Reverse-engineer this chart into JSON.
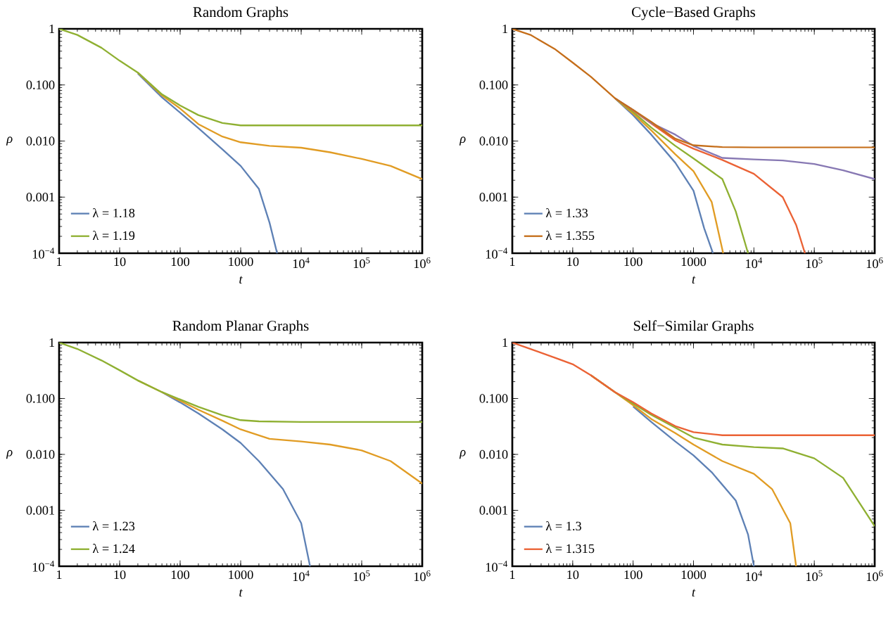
{
  "chart_data": [
    {
      "type": "line",
      "title": "Random Graphs",
      "xlabel": "t",
      "ylabel": "ρ",
      "log": "xy",
      "legend": "bottom left",
      "xlim": [
        1,
        1000000
      ],
      "ylim": [
        0.0001,
        1
      ],
      "xticks": [
        1,
        10,
        100,
        1000,
        {
          "value": 10000,
          "label": "10$^{4}$"
        },
        {
          "value": 100000,
          "label": "10$^{5}$"
        },
        {
          "value": 1000000,
          "label": "10$^{6}$"
        }
      ],
      "yticks": [
        {
          "value": 0.0001,
          "label": "10$^{−4}$"
        },
        {
          "value": 0.001,
          "label": "0.001"
        },
        {
          "value": 0.01,
          "label": "0.010"
        },
        {
          "value": 0.1,
          "label": "0.100"
        },
        1
      ],
      "series": [
        {
          "name": "λ = 1.18",
          "color": "#5e81b5",
          "x": [
            20,
            50,
            100,
            200,
            500,
            1000,
            2000,
            3000,
            4000
          ],
          "values": [
            0.16,
            0.06,
            0.032,
            0.017,
            0.0071,
            0.0036,
            0.0014,
            0.00035,
            0.0001
          ]
        },
        {
          "color": "#e19c24",
          "x": [
            20,
            50,
            100,
            200,
            500,
            1000,
            3000,
            10000,
            30000,
            100000,
            300000,
            1000000
          ],
          "values": [
            0.165,
            0.065,
            0.038,
            0.02,
            0.012,
            0.0095,
            0.0082,
            0.0076,
            0.0063,
            0.0048,
            0.0036,
            0.0021
          ]
        },
        {
          "name": "λ = 1.19",
          "color": "#8fb032",
          "x": [
            1,
            2,
            5,
            10,
            20,
            50,
            100,
            200,
            500,
            1000,
            10000,
            100000,
            1000000
          ],
          "values": [
            1,
            0.78,
            0.46,
            0.27,
            0.166,
            0.068,
            0.043,
            0.029,
            0.021,
            0.019,
            0.019,
            0.019,
            0.019
          ]
        }
      ]
    },
    {
      "type": "line",
      "title": "Cycle−Based Graphs",
      "xlabel": "t",
      "ylabel": "ρ",
      "log": "xy",
      "legend": "bottom left",
      "xlim": [
        1,
        1000000
      ],
      "ylim": [
        0.0001,
        1
      ],
      "xticks": [
        1,
        10,
        100,
        1000,
        {
          "value": 10000,
          "label": "10$^{4}$"
        },
        {
          "value": 100000,
          "label": "10$^{5}$"
        },
        {
          "value": 1000000,
          "label": "10$^{6}$"
        }
      ],
      "yticks": [
        {
          "value": 0.0001,
          "label": "10$^{−4}$"
        },
        {
          "value": 0.001,
          "label": "0.001"
        },
        {
          "value": 0.01,
          "label": "0.010"
        },
        {
          "value": 0.1,
          "label": "0.100"
        },
        1
      ],
      "series": [
        {
          "name": "λ = 1.33",
          "color": "#5e81b5",
          "x": [
            50,
            100,
            200,
            500,
            1000,
            1500,
            2100
          ],
          "values": [
            0.058,
            0.029,
            0.013,
            0.0041,
            0.0013,
            0.00028,
            0.0001
          ]
        },
        {
          "color": "#e19c24",
          "x": [
            50,
            100,
            200,
            500,
            1000,
            2000,
            3100
          ],
          "values": [
            0.058,
            0.031,
            0.0155,
            0.0058,
            0.0029,
            0.00082,
            0.0001
          ]
        },
        {
          "color": "#8fb032",
          "x": [
            50,
            100,
            200,
            500,
            1000,
            3000,
            5000,
            8000
          ],
          "values": [
            0.058,
            0.033,
            0.0174,
            0.0082,
            0.0049,
            0.0021,
            0.00056,
            0.0001
          ]
        },
        {
          "color": "#eb6235",
          "x": [
            50,
            100,
            200,
            500,
            1000,
            3000,
            10000,
            30000,
            50000,
            70000
          ],
          "values": [
            0.058,
            0.035,
            0.0206,
            0.0103,
            0.0073,
            0.0046,
            0.0026,
            0.001,
            0.00032,
            0.0001
          ]
        },
        {
          "color": "#8778b3",
          "x": [
            50,
            100,
            200,
            500,
            1000,
            3000,
            10000,
            30000,
            100000,
            300000,
            1000000
          ],
          "values": [
            0.058,
            0.036,
            0.021,
            0.013,
            0.0082,
            0.005,
            0.0047,
            0.0045,
            0.0039,
            0.003,
            0.0021
          ]
        },
        {
          "name": "λ = 1.355",
          "color": "#c56e1a",
          "x": [
            1,
            2,
            5,
            10,
            20,
            50,
            100,
            200,
            500,
            1000,
            3000,
            10000,
            100000,
            1000000
          ],
          "values": [
            1,
            0.78,
            0.44,
            0.25,
            0.14,
            0.058,
            0.036,
            0.022,
            0.011,
            0.0084,
            0.0078,
            0.0077,
            0.0077,
            0.0077
          ]
        }
      ]
    },
    {
      "type": "line",
      "title": "Random Planar Graphs",
      "xlabel": "t",
      "ylabel": "ρ",
      "log": "xy",
      "legend": "bottom left",
      "xlim": [
        1,
        1000000
      ],
      "ylim": [
        0.0001,
        1
      ],
      "xticks": [
        1,
        10,
        100,
        1000,
        {
          "value": 10000,
          "label": "10$^{4}$"
        },
        {
          "value": 100000,
          "label": "10$^{5}$"
        },
        {
          "value": 1000000,
          "label": "10$^{6}$"
        }
      ],
      "yticks": [
        {
          "value": 0.0001,
          "label": "10$^{−4}$"
        },
        {
          "value": 0.001,
          "label": "0.001"
        },
        {
          "value": 0.01,
          "label": "0.010"
        },
        {
          "value": 0.1,
          "label": "0.100"
        },
        1
      ],
      "series": [
        {
          "name": "λ = 1.23",
          "color": "#5e81b5",
          "x": [
            50,
            100,
            200,
            500,
            1000,
            2000,
            5000,
            10000,
            14000
          ],
          "values": [
            0.13,
            0.085,
            0.054,
            0.028,
            0.016,
            0.0076,
            0.0024,
            0.00059,
            0.0001
          ]
        },
        {
          "color": "#e19c24",
          "x": [
            20,
            50,
            100,
            200,
            500,
            1000,
            3000,
            10000,
            30000,
            100000,
            300000,
            1000000
          ],
          "values": [
            0.21,
            0.13,
            0.091,
            0.063,
            0.04,
            0.028,
            0.019,
            0.017,
            0.015,
            0.0118,
            0.0076,
            0.003
          ]
        },
        {
          "name": "λ = 1.24",
          "color": "#8fb032",
          "x": [
            1,
            2,
            5,
            10,
            20,
            50,
            100,
            200,
            500,
            1000,
            2000,
            10000,
            100000,
            1000000
          ],
          "values": [
            1,
            0.77,
            0.48,
            0.32,
            0.21,
            0.13,
            0.096,
            0.071,
            0.05,
            0.041,
            0.039,
            0.038,
            0.038,
            0.038
          ]
        }
      ]
    },
    {
      "type": "line",
      "title": "Self−Similar Graphs",
      "xlabel": "t",
      "ylabel": "ρ",
      "log": "xy",
      "legend": "bottom left",
      "xlim": [
        1,
        1000000
      ],
      "ylim": [
        0.0001,
        1
      ],
      "xticks": [
        1,
        10,
        100,
        1000,
        {
          "value": 10000,
          "label": "10$^{4}$"
        },
        {
          "value": 100000,
          "label": "10$^{5}$"
        },
        {
          "value": 1000000,
          "label": "10$^{6}$"
        }
      ],
      "yticks": [
        {
          "value": 0.0001,
          "label": "10$^{−4}$"
        },
        {
          "value": 0.001,
          "label": "0.001"
        },
        {
          "value": 0.01,
          "label": "0.010"
        },
        {
          "value": 0.1,
          "label": "0.100"
        },
        1
      ],
      "series": [
        {
          "name": "λ = 1.3",
          "color": "#5e81b5",
          "x": [
            100,
            200,
            500,
            1000,
            2000,
            5000,
            8000,
            10000
          ],
          "values": [
            0.072,
            0.038,
            0.017,
            0.0096,
            0.0048,
            0.0015,
            0.00037,
            0.0001
          ]
        },
        {
          "color": "#e19c24",
          "x": [
            20,
            50,
            100,
            200,
            500,
            1000,
            3000,
            10000,
            20000,
            40000,
            50000
          ],
          "values": [
            0.26,
            0.13,
            0.076,
            0.043,
            0.024,
            0.015,
            0.0076,
            0.0045,
            0.0024,
            0.00059,
            0.0001
          ]
        },
        {
          "color": "#8fb032",
          "x": [
            20,
            50,
            100,
            200,
            500,
            1000,
            3000,
            10000,
            30000,
            100000,
            300000,
            1000000
          ],
          "values": [
            0.26,
            0.13,
            0.081,
            0.051,
            0.03,
            0.02,
            0.015,
            0.0135,
            0.0128,
            0.0085,
            0.0038,
            0.00052
          ]
        },
        {
          "name": "λ = 1.315",
          "color": "#eb6235",
          "x": [
            1,
            2,
            5,
            10,
            20,
            50,
            100,
            200,
            500,
            1000,
            3000,
            10000,
            100000,
            1000000
          ],
          "values": [
            1,
            0.77,
            0.54,
            0.41,
            0.26,
            0.13,
            0.086,
            0.054,
            0.032,
            0.025,
            0.022,
            0.022,
            0.022,
            0.022
          ]
        }
      ]
    }
  ]
}
